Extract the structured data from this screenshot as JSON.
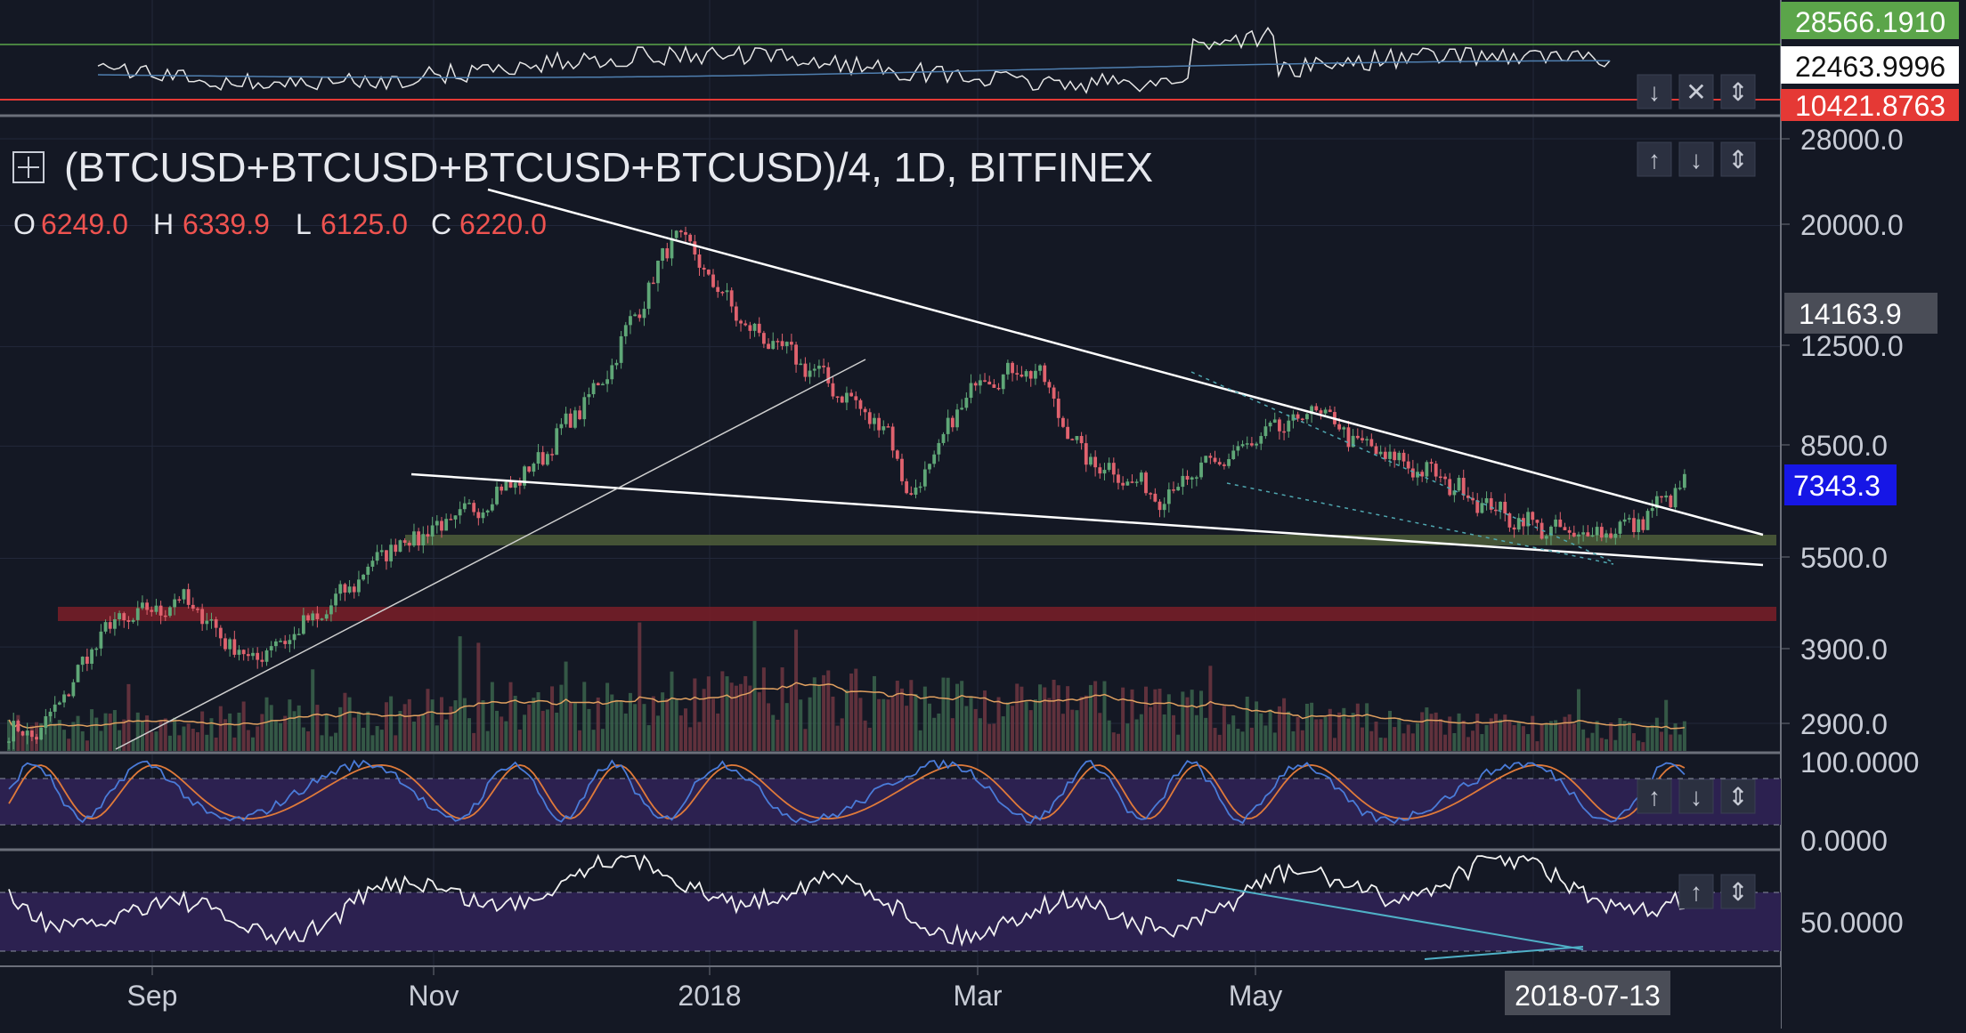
{
  "app": {
    "colors": {
      "background": "#141824",
      "candle_up": "#5fa777",
      "candle_down": "#e0626e",
      "trendline": "#ffffff",
      "support_zone": "#4a5a38",
      "resistance_zone": "#7a1f28",
      "oscillator_band": "#2c2150",
      "stoch_k": "#4a7bd8",
      "stoch_d": "#e07a3a",
      "price_tag_blue": "#1616e6",
      "price_tag_gray": "#4a4d57",
      "price_tag_green": "#5ba54a",
      "price_tag_red": "#e53935"
    },
    "icons": {
      "expand": "square-plus-icon",
      "move_up": "arrow-up-icon",
      "move_down": "arrow-down-icon",
      "maximize": "arrows-vertical-icon",
      "close": "close-icon"
    }
  },
  "header": {
    "title": "(BTCUSD+BTCUSD+BTCUSD+BTCUSD)/4, 1D, BITFINEX",
    "ohlc": {
      "o_label": "O",
      "o_value": "6249.0",
      "h_label": "H",
      "h_value": "6339.9",
      "l_label": "L",
      "l_value": "6125.0",
      "c_label": "C",
      "c_value": "6220.0"
    }
  },
  "top_pane": {
    "labels": [
      "28566.1910",
      "22463.9996",
      "10421.8763"
    ]
  },
  "price_axis": {
    "ticks": [
      "28000.0",
      "20000.0",
      "12500.0",
      "8500.0",
      "5500.0",
      "3900.0",
      "2900.0"
    ],
    "tags": {
      "level": "14163.9",
      "last_price": "7343.3"
    }
  },
  "stoch_axis": {
    "ticks": [
      "100.0000",
      "0.0000"
    ]
  },
  "rsi_axis": {
    "ticks": [
      "50.0000"
    ]
  },
  "time_axis": {
    "ticks": [
      "Sep",
      "Nov",
      "2018",
      "Mar",
      "May"
    ],
    "cursor_label": "2018-07-13"
  },
  "chart_data": {
    "type": "candlestick",
    "title": "(BTCUSD+BTCUSD+BTCUSD+BTCUSD)/4, 1D, BITFINEX",
    "x": [
      "2017-08-01",
      "2017-08-15",
      "2017-09-01",
      "2017-09-15",
      "2017-10-01",
      "2017-10-15",
      "2017-11-01",
      "2017-11-15",
      "2017-12-01",
      "2017-12-17",
      "2018-01-01",
      "2018-01-15",
      "2018-02-01",
      "2018-02-06",
      "2018-02-20",
      "2018-03-05",
      "2018-03-15",
      "2018-04-01",
      "2018-04-15",
      "2018-05-05",
      "2018-05-15",
      "2018-06-01",
      "2018-06-15",
      "2018-06-29",
      "2018-07-13",
      "2018-07-24"
    ],
    "close": [
      2800,
      4200,
      4700,
      3700,
      4400,
      5700,
      6500,
      7700,
      11000,
      19500,
      13500,
      11500,
      9000,
      6900,
      11000,
      11500,
      8200,
      7000,
      8100,
      9800,
      8500,
      7500,
      6500,
      6000,
      6250,
      7343
    ],
    "last": {
      "o": 6249.0,
      "h": 6339.9,
      "l": 6125.0,
      "c": 6220.0
    },
    "y_scale": "log",
    "y_ticks": [
      2900,
      3900,
      5500,
      8500,
      12500,
      20000,
      28000
    ],
    "x_ticks": [
      "Sep",
      "Nov",
      "2018",
      "Mar",
      "May",
      "2018-07-13"
    ],
    "stoch_range": [
      0,
      100
    ],
    "rsi_reference": 50,
    "top_pane_levels": [
      28566.191,
      22463.9996,
      10421.8763
    ],
    "grid": true
  }
}
